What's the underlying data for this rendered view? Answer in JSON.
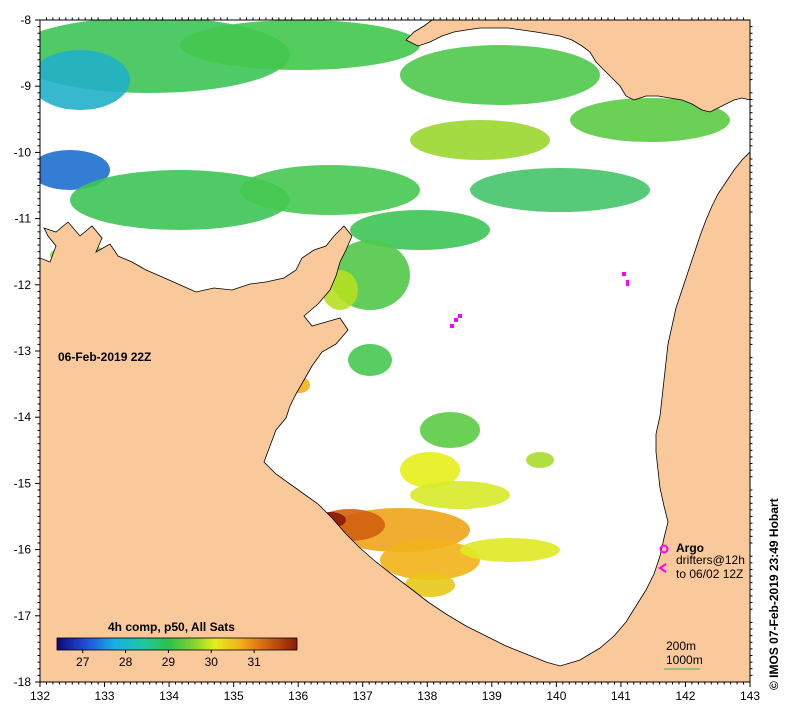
{
  "map": {
    "date_label": "06-Feb-2019 22Z",
    "credit": "© IMOS 07-Feb-2019 23:49 Hobart",
    "x_ticks": [
      "132",
      "133",
      "134",
      "135",
      "136",
      "137",
      "138",
      "139",
      "140",
      "141",
      "142",
      "143"
    ],
    "y_ticks": [
      "-8",
      "-9",
      "-10",
      "-11",
      "-12",
      "-13",
      "-14",
      "-15",
      "-16",
      "-17",
      "-18"
    ],
    "colorbar": {
      "title": "4h comp, p50, All Sats",
      "ticks": [
        "27",
        "28",
        "29",
        "30",
        "31"
      ]
    },
    "legend": {
      "argo": "Argo",
      "drifters_line1": "drifters@12h",
      "drifters_line2": "to 06/02 12Z",
      "depth_200": "200m",
      "depth_1000": "1000m"
    },
    "colors": {
      "land": "#f9c89b",
      "no_data": "#ffffff",
      "argo": "#ff00ff"
    }
  },
  "chart_data": {
    "type": "heatmap",
    "title": "06-Feb-2019 22Z",
    "x_ticks": [
      132,
      133,
      134,
      135,
      136,
      137,
      138,
      139,
      140,
      141,
      142,
      143
    ],
    "y_ticks": [
      -8,
      -9,
      -10,
      -11,
      -12,
      -13,
      -14,
      -15,
      -16,
      -17,
      -18
    ],
    "xlim": [
      132,
      143
    ],
    "ylim": [
      -18,
      -8
    ],
    "colorbar_ticks": [
      27,
      28,
      29,
      30,
      31
    ],
    "colorbar_range": [
      26.4,
      32.0
    ]
  }
}
